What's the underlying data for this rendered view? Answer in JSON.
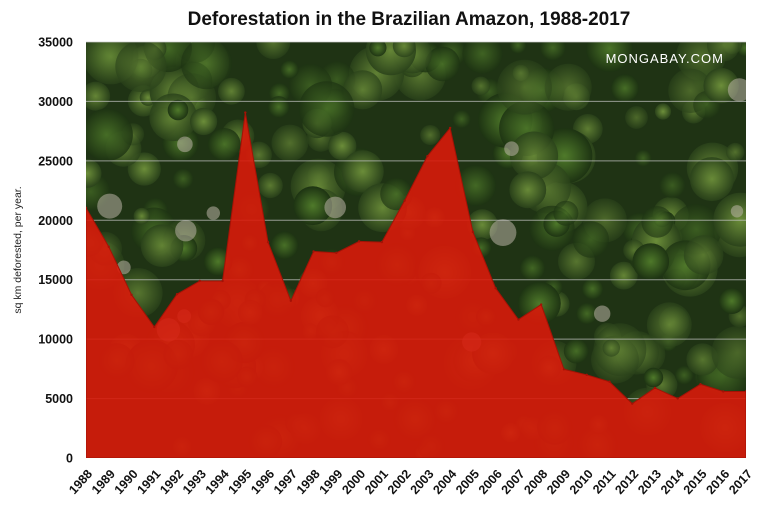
{
  "colors": {
    "area_fill": "#d81a0a",
    "forest_dark": "#1b2a12",
    "forest_mid": "#2f4a1c",
    "forest_light": "#5a7a2e",
    "gridline": "#c8c8c8",
    "watermark": "#ffffff"
  },
  "watermark": "MONGABAY.COM",
  "chart_data": {
    "type": "area",
    "title": "Deforestation in the Brazilian Amazon, 1988-2017",
    "xlabel": "",
    "ylabel": "sq km deforested, per year.",
    "ylim": [
      0,
      35000
    ],
    "yticks": [
      0,
      5000,
      10000,
      15000,
      20000,
      25000,
      30000,
      35000
    ],
    "grid": true,
    "x": [
      "1988",
      "1989",
      "1990",
      "1991",
      "1992",
      "1993",
      "1994",
      "1995",
      "1996",
      "1997",
      "1998",
      "1999",
      "2000",
      "2001",
      "2002",
      "2003",
      "2004",
      "2005",
      "2006",
      "2007",
      "2008",
      "2009",
      "2010",
      "2011",
      "2012",
      "2013",
      "2014",
      "2015",
      "2016",
      "2017"
    ],
    "values": [
      21050,
      17770,
      13730,
      11030,
      13786,
      14896,
      14896,
      29059,
      18161,
      13227,
      17383,
      17259,
      18226,
      18165,
      21651,
      25396,
      27772,
      19014,
      14286,
      11651,
      12911,
      7464,
      7000,
      6418,
      4571,
      5891,
      5012,
      6207,
      5600,
      5600
    ]
  }
}
